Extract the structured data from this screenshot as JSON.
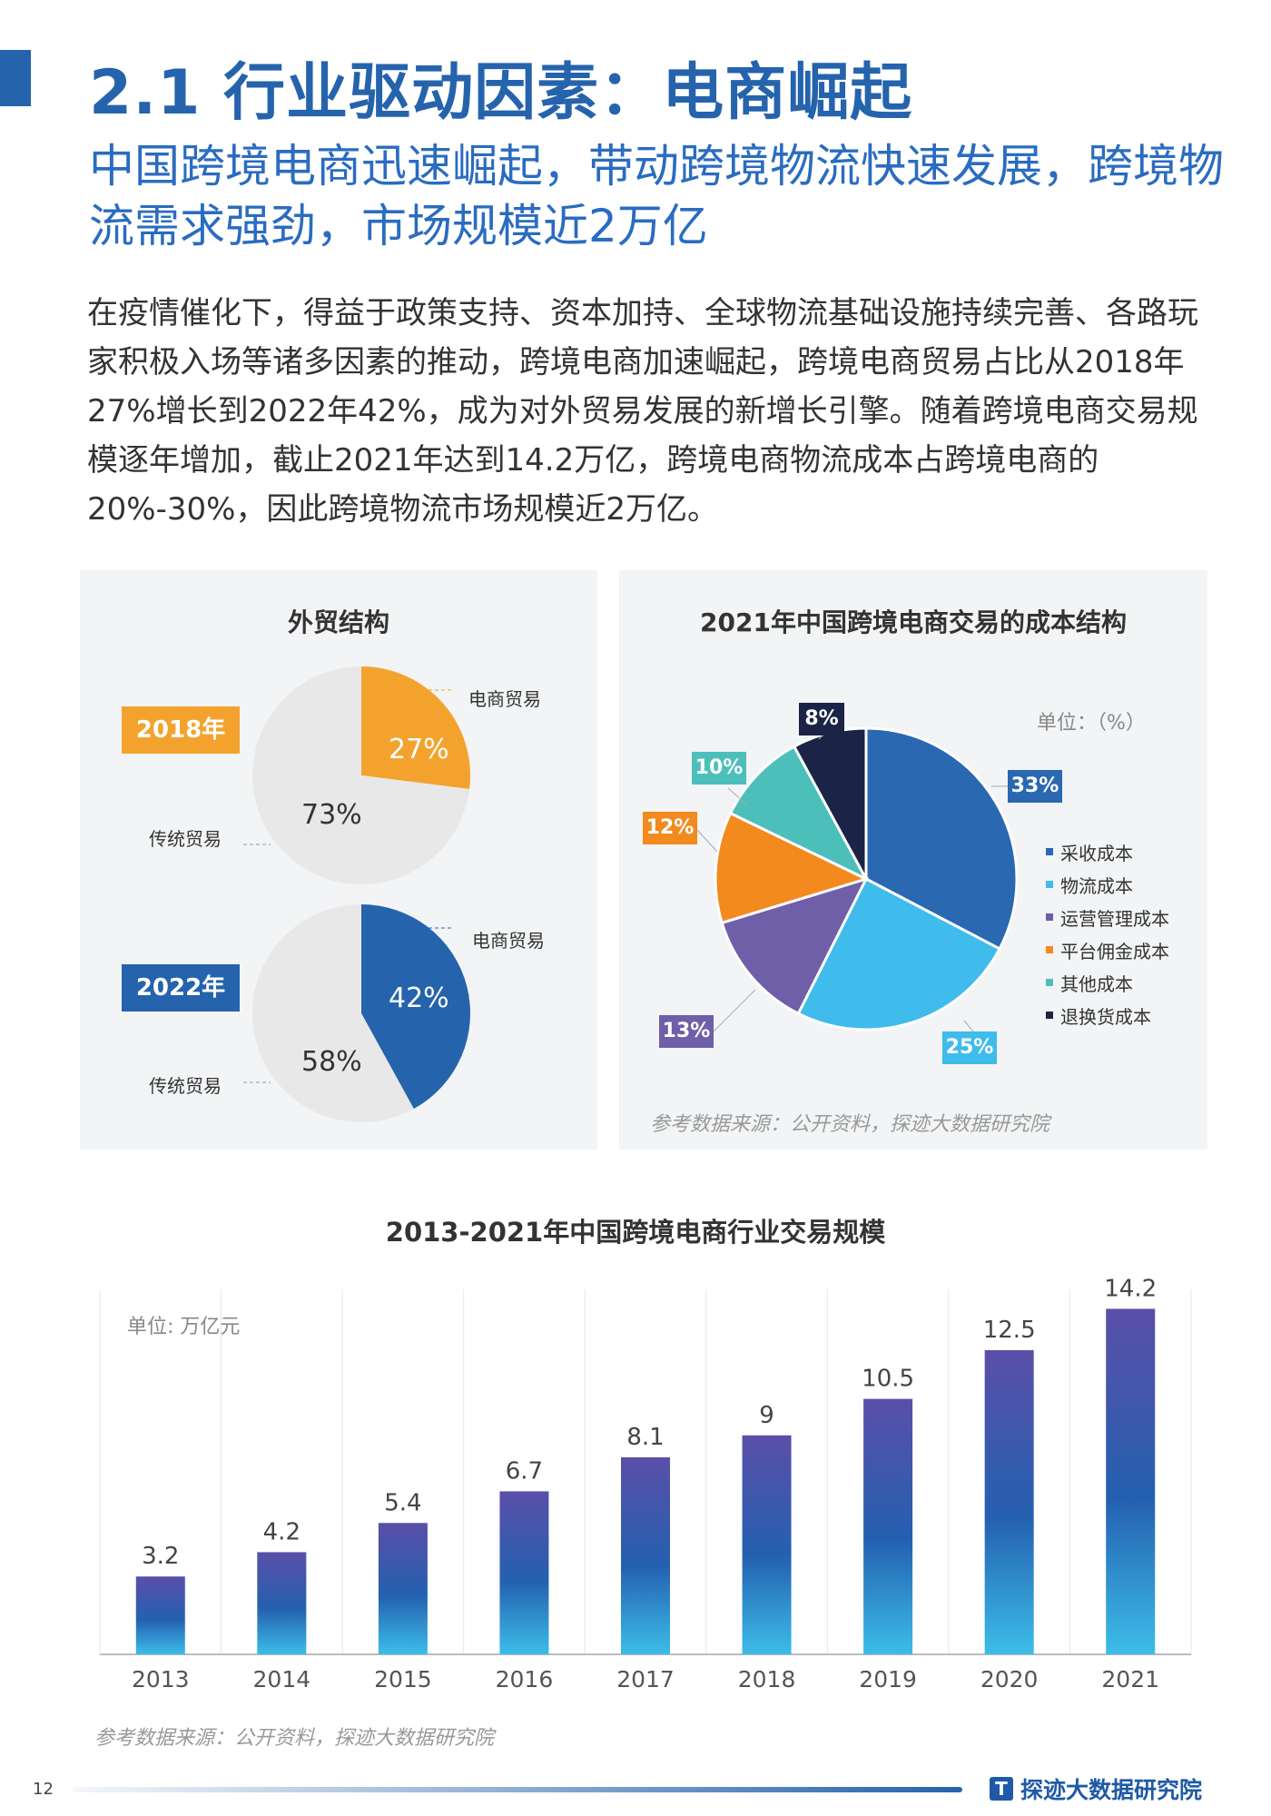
{
  "header": {
    "title": "2.1 行业驱动因素：电商崛起",
    "subtitle": "中国跨境电商迅速崛起，带动跨境物流快速发展，跨境物流需求强劲，市场规模近2万亿"
  },
  "body": "在疫情催化下，得益于政策支持、资本加持、全球物流基础设施持续完善、各路玩家积极入场等诸多因素的推动，跨境电商加速崛起，跨境电商贸易占比从2018年27%增长到2022年42%，成为对外贸易发展的新增长引擎。随着跨境电商交易规模逐年增加，截止2021年达到14.2万亿，跨境电商物流成本占跨境电商的20%-30%，因此跨境物流市场规模近2万亿。",
  "colors": {
    "brand": "#2563ad",
    "orange": "#f3a32d",
    "grey": "#e8e8e8"
  },
  "chart_data": [
    {
      "type": "pie",
      "title": "外贸结构",
      "groups": [
        {
          "year": "2018年",
          "slices": [
            {
              "label": "电商贸易",
              "value": 27,
              "display": "27%"
            },
            {
              "label": "传统贸易",
              "value": 73,
              "display": "73%"
            }
          ]
        },
        {
          "year": "2022年",
          "slices": [
            {
              "label": "电商贸易",
              "value": 42,
              "display": "42%"
            },
            {
              "label": "传统贸易",
              "value": 58,
              "display": "58%"
            }
          ]
        }
      ]
    },
    {
      "type": "pie",
      "title": "2021年中国跨境电商交易的成本结构",
      "unit": "单位：（%）",
      "source": "参考数据来源：公开资料，探迹大数据研究院",
      "slices": [
        {
          "label": "采收成本",
          "value": 33,
          "display": "33%",
          "color": "#2a68b1"
        },
        {
          "label": "物流成本",
          "value": 25,
          "display": "25%",
          "color": "#3fbbec"
        },
        {
          "label": "运营管理成本",
          "value": 13,
          "display": "13%",
          "color": "#6f5ea8"
        },
        {
          "label": "平台佣金成本",
          "value": 12,
          "display": "12%",
          "color": "#f28a1e"
        },
        {
          "label": "其他成本",
          "value": 10,
          "display": "10%",
          "color": "#4cbfbb"
        },
        {
          "label": "退换货成本",
          "value": 8,
          "display": "8%",
          "color": "#1b2446"
        }
      ]
    },
    {
      "type": "bar",
      "title": "2013-2021年中国跨境电商行业交易规模",
      "unit": "单位: 万亿元",
      "categories": [
        "2013",
        "2014",
        "2015",
        "2016",
        "2017",
        "2018",
        "2019",
        "2020",
        "2021"
      ],
      "values": [
        3.2,
        4.2,
        5.4,
        6.7,
        8.1,
        9,
        10.5,
        12.5,
        14.2
      ],
      "ylim": [
        0,
        15
      ]
    }
  ],
  "footer": {
    "source": "参考数据来源：公开资料，探迹大数据研究院",
    "page": "12",
    "brand": "探迹大数据研究院",
    "brand_icon": "T"
  }
}
